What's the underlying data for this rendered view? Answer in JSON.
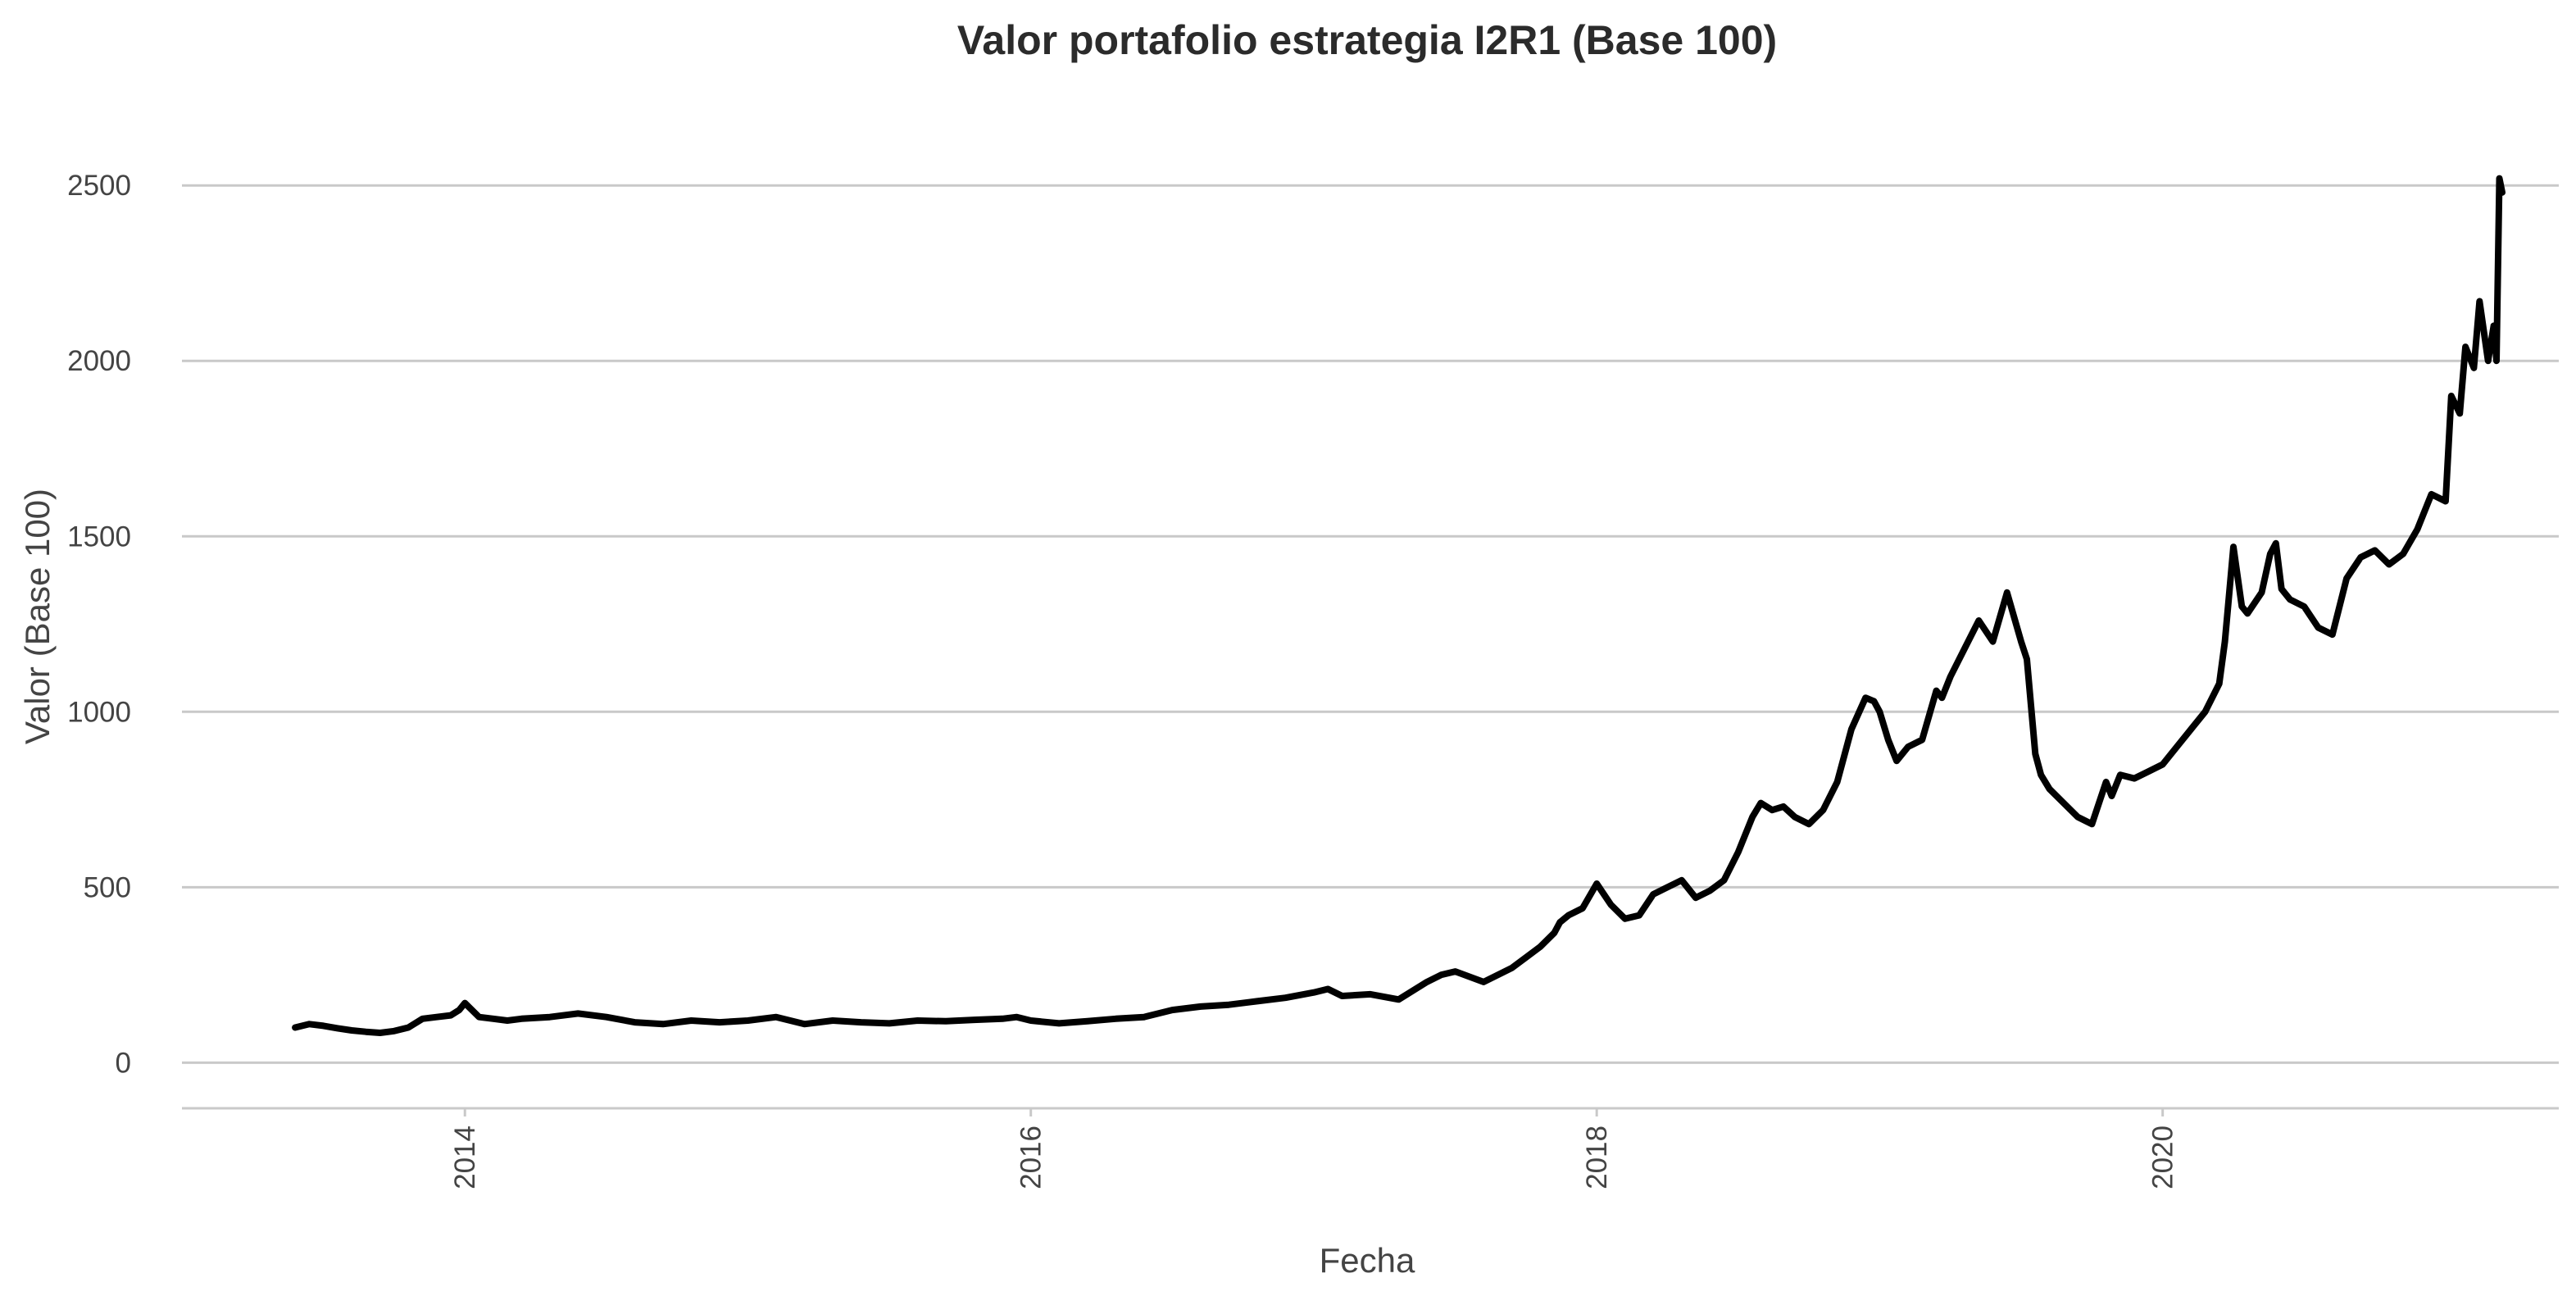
{
  "chart_data": {
    "type": "line",
    "title": "Valor portafolio estrategia I2R1 (Base 100)",
    "xlabel": "Fecha",
    "ylabel": "Valor (Base 100)",
    "xlim": [
      2013.0,
      2021.4
    ],
    "ylim": [
      -130,
      2650
    ],
    "x_ticks": [
      {
        "value": 2014,
        "label": "2014"
      },
      {
        "value": 2016,
        "label": "2016"
      },
      {
        "value": 2018,
        "label": "2018"
      },
      {
        "value": 2020,
        "label": "2020"
      }
    ],
    "y_ticks": [
      {
        "value": 0,
        "label": "0"
      },
      {
        "value": 500,
        "label": "500"
      },
      {
        "value": 1000,
        "label": "1000"
      },
      {
        "value": 1500,
        "label": "1500"
      },
      {
        "value": 2000,
        "label": "2000"
      },
      {
        "value": 2500,
        "label": "2500"
      }
    ],
    "grid": true,
    "legend": "none",
    "series": [
      {
        "color": "#000000",
        "x": [
          2013.4,
          2013.45,
          2013.5,
          2013.55,
          2013.6,
          2013.65,
          2013.7,
          2013.75,
          2013.8,
          2013.85,
          2013.9,
          2013.95,
          2013.98,
          2014.0,
          2014.05,
          2014.1,
          2014.15,
          2014.2,
          2014.3,
          2014.4,
          2014.5,
          2014.6,
          2014.7,
          2014.8,
          2014.9,
          2015.0,
          2015.1,
          2015.2,
          2015.3,
          2015.4,
          2015.5,
          2015.6,
          2015.7,
          2015.8,
          2015.9,
          2015.95,
          2016.0,
          2016.1,
          2016.2,
          2016.3,
          2016.4,
          2016.5,
          2016.6,
          2016.7,
          2016.8,
          2016.9,
          2017.0,
          2017.05,
          2017.1,
          2017.2,
          2017.3,
          2017.4,
          2017.45,
          2017.5,
          2017.6,
          2017.7,
          2017.75,
          2017.8,
          2017.85,
          2017.87,
          2017.9,
          2017.95,
          2018.0,
          2018.05,
          2018.1,
          2018.15,
          2018.2,
          2018.25,
          2018.3,
          2018.35,
          2018.4,
          2018.45,
          2018.5,
          2018.55,
          2018.58,
          2018.62,
          2018.66,
          2018.7,
          2018.75,
          2018.8,
          2018.85,
          2018.9,
          2018.95,
          2018.98,
          2019.0,
          2019.03,
          2019.06,
          2019.1,
          2019.15,
          2019.2,
          2019.22,
          2019.25,
          2019.3,
          2019.35,
          2019.4,
          2019.45,
          2019.5,
          2019.52,
          2019.55,
          2019.57,
          2019.6,
          2019.65,
          2019.7,
          2019.75,
          2019.8,
          2019.82,
          2019.85,
          2019.9,
          2019.95,
          2020.0,
          2020.05,
          2020.1,
          2020.15,
          2020.2,
          2020.22,
          2020.25,
          2020.28,
          2020.3,
          2020.35,
          2020.38,
          2020.4,
          2020.42,
          2020.45,
          2020.5,
          2020.55,
          2020.6,
          2020.65,
          2020.7,
          2020.75,
          2020.8,
          2020.85,
          2020.9,
          2020.95,
          2021.0,
          2021.02,
          2021.05,
          2021.07,
          2021.1,
          2021.12,
          2021.15,
          2021.17,
          2021.18,
          2021.19,
          2021.2
        ],
        "y": [
          100,
          110,
          105,
          98,
          92,
          88,
          85,
          90,
          100,
          125,
          130,
          135,
          150,
          170,
          130,
          125,
          120,
          125,
          130,
          140,
          130,
          115,
          110,
          120,
          115,
          120,
          130,
          110,
          120,
          115,
          112,
          120,
          118,
          122,
          125,
          130,
          120,
          112,
          118,
          125,
          130,
          150,
          160,
          165,
          175,
          185,
          200,
          210,
          190,
          195,
          180,
          230,
          250,
          260,
          230,
          270,
          300,
          330,
          370,
          400,
          420,
          440,
          510,
          450,
          410,
          420,
          480,
          500,
          520,
          470,
          490,
          520,
          600,
          700,
          740,
          720,
          730,
          700,
          680,
          720,
          800,
          950,
          1040,
          1030,
          1000,
          920,
          860,
          900,
          920,
          1060,
          1040,
          1100,
          1180,
          1260,
          1200,
          1340,
          1200,
          1150,
          880,
          820,
          780,
          740,
          700,
          680,
          800,
          760,
          820,
          810,
          830,
          850,
          900,
          950,
          1000,
          1080,
          1200,
          1470,
          1300,
          1280,
          1340,
          1450,
          1480,
          1350,
          1320,
          1300,
          1240,
          1220,
          1380,
          1440,
          1460,
          1420,
          1450,
          1520,
          1620,
          1600,
          1900,
          1850,
          2040,
          1980,
          2170,
          2000,
          2100,
          2000,
          2520,
          2480
        ]
      }
    ]
  }
}
